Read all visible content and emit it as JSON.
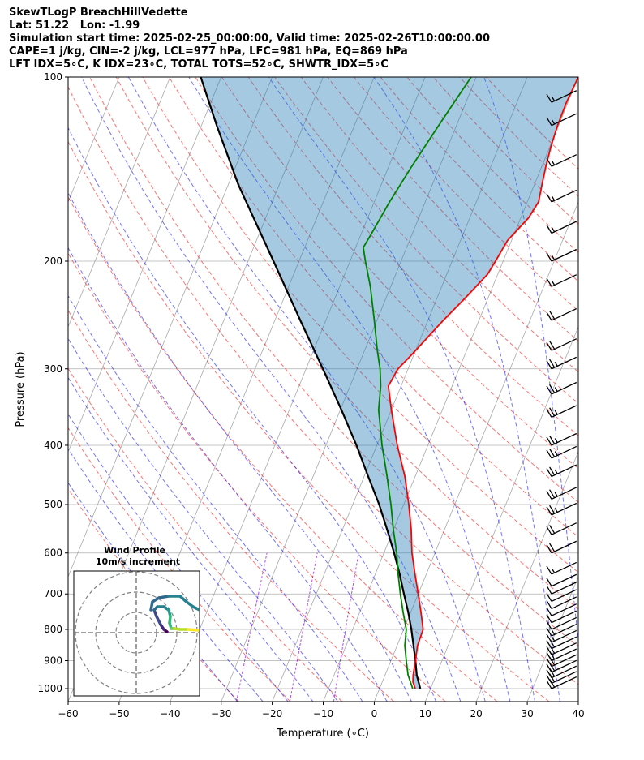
{
  "header": {
    "lines": [
      "SkewTLogP BreachHillVedette",
      "Lat: 51.22   Lon: -1.99",
      "Simulation start time: 2025-02-25_00:00:00, Valid time: 2025-02-26T10:00:00.00",
      "CAPE=1 j/kg, CIN=-2 j/kg, LCL=977 hPa, LFC=981 hPa, EQ=869 hPa",
      "LFT IDX=5∘C, K IDX=23∘C, TOTAL TOTS=52∘C, SHWTR_IDX=5∘C"
    ]
  },
  "chart_data": {
    "type": "line",
    "subtype": "skew-t log-p",
    "xlabel": "Temperature (∘C)",
    "ylabel": "Pressure (hPa)",
    "x_ticks": [
      -60,
      -50,
      -40,
      -30,
      -20,
      -10,
      0,
      10,
      20,
      30,
      40
    ],
    "y_ticks": [
      100,
      200,
      300,
      400,
      500,
      600,
      700,
      800,
      900,
      1000
    ],
    "xlim": [
      -60,
      40
    ],
    "ylim": [
      1050,
      100
    ],
    "grid": true,
    "colors": {
      "temperature": "#ff0000",
      "dewpoint": "#008000",
      "parcel": "#000000",
      "cape_fill": "#1f77b4",
      "dry_adiabats": "#ff0000",
      "moist_adiabats": "#0000ff",
      "isotherms": "#808080",
      "mixing_ratio": "#9400d3"
    },
    "temperature": [
      {
        "p": 1000,
        "t": 7.0
      },
      {
        "p": 975,
        "t": 6.0
      },
      {
        "p": 950,
        "t": 5.5
      },
      {
        "p": 900,
        "t": 4.8
      },
      {
        "p": 850,
        "t": 4.0
      },
      {
        "p": 800,
        "t": 3.8
      },
      {
        "p": 750,
        "t": 2.0
      },
      {
        "p": 700,
        "t": 0.0
      },
      {
        "p": 650,
        "t": -2.2
      },
      {
        "p": 600,
        "t": -4.5
      },
      {
        "p": 550,
        "t": -6.5
      },
      {
        "p": 500,
        "t": -9.0
      },
      {
        "p": 450,
        "t": -12.0
      },
      {
        "p": 400,
        "t": -16.0
      },
      {
        "p": 350,
        "t": -20.0
      },
      {
        "p": 320,
        "t": -22.5
      },
      {
        "p": 300,
        "t": -22.0
      },
      {
        "p": 285,
        "t": -20.5
      },
      {
        "p": 250,
        "t": -17.0
      },
      {
        "p": 230,
        "t": -14.5
      },
      {
        "p": 210,
        "t": -12.0
      },
      {
        "p": 200,
        "t": -11.5
      },
      {
        "p": 185,
        "t": -10.8
      },
      {
        "p": 170,
        "t": -8.5
      },
      {
        "p": 160,
        "t": -7.8
      },
      {
        "p": 150,
        "t": -8.5
      },
      {
        "p": 140,
        "t": -9.2
      },
      {
        "p": 130,
        "t": -9.8
      },
      {
        "p": 120,
        "t": -10.2
      },
      {
        "p": 110,
        "t": -10.3
      },
      {
        "p": 100,
        "t": -10.0
      }
    ],
    "dewpoint": [
      {
        "p": 1000,
        "t": 6.5
      },
      {
        "p": 950,
        "t": 4.5
      },
      {
        "p": 900,
        "t": 3.0
      },
      {
        "p": 850,
        "t": 1.5
      },
      {
        "p": 800,
        "t": 0.5
      },
      {
        "p": 750,
        "t": -1.5
      },
      {
        "p": 700,
        "t": -3.5
      },
      {
        "p": 650,
        "t": -5.5
      },
      {
        "p": 600,
        "t": -7.5
      },
      {
        "p": 550,
        "t": -10.0
      },
      {
        "p": 500,
        "t": -12.5
      },
      {
        "p": 450,
        "t": -15.5
      },
      {
        "p": 400,
        "t": -19.0
      },
      {
        "p": 350,
        "t": -22.5
      },
      {
        "p": 320,
        "t": -24.0
      },
      {
        "p": 300,
        "t": -25.5
      },
      {
        "p": 280,
        "t": -27.5
      },
      {
        "p": 250,
        "t": -30.5
      },
      {
        "p": 220,
        "t": -34.0
      },
      {
        "p": 200,
        "t": -37.0
      },
      {
        "p": 190,
        "t": -38.5
      },
      {
        "p": 180,
        "t": -38.0
      },
      {
        "p": 160,
        "t": -37.0
      },
      {
        "p": 140,
        "t": -35.5
      },
      {
        "p": 120,
        "t": -33.5
      },
      {
        "p": 100,
        "t": -31.0
      }
    ],
    "parcel": [
      {
        "p": 1000,
        "t": 8.0
      },
      {
        "p": 950,
        "t": 6.2
      },
      {
        "p": 900,
        "t": 4.8
      },
      {
        "p": 850,
        "t": 3.2
      },
      {
        "p": 800,
        "t": 1.5
      },
      {
        "p": 750,
        "t": -0.5
      },
      {
        "p": 700,
        "t": -2.8
      },
      {
        "p": 650,
        "t": -5.2
      },
      {
        "p": 600,
        "t": -8.0
      },
      {
        "p": 550,
        "t": -11.2
      },
      {
        "p": 500,
        "t": -14.8
      },
      {
        "p": 450,
        "t": -19.2
      },
      {
        "p": 400,
        "t": -24.0
      },
      {
        "p": 350,
        "t": -29.8
      },
      {
        "p": 300,
        "t": -36.7
      },
      {
        "p": 250,
        "t": -45.0
      },
      {
        "p": 200,
        "t": -55.0
      },
      {
        "p": 150,
        "t": -68.0
      },
      {
        "p": 120,
        "t": -77.0
      },
      {
        "p": 100,
        "t": -84.0
      }
    ],
    "cape_fill": {
      "bottom_p": 1000,
      "top_p": 100,
      "between": [
        "temperature",
        "parcel"
      ]
    },
    "wind_barbs": {
      "pressures": [
        1000,
        980,
        960,
        940,
        920,
        900,
        880,
        860,
        840,
        820,
        800,
        780,
        760,
        740,
        720,
        700,
        680,
        650,
        600,
        560,
        520,
        490,
        450,
        420,
        400,
        360,
        330,
        300,
        280,
        250,
        220,
        200,
        180,
        160,
        140,
        120,
        110
      ],
      "feathers": [
        2,
        2,
        2,
        2,
        2,
        2,
        1.5,
        1.5,
        1.5,
        1.5,
        1,
        1,
        1,
        1,
        1,
        1,
        1,
        1.5,
        2,
        2,
        2.5,
        2.5,
        2.5,
        2.5,
        2.5,
        2.5,
        2.5,
        2.5,
        2,
        2,
        1.5,
        1.5,
        1.5,
        1.5,
        1.5,
        1.5,
        1.5
      ],
      "direction_deg": 250
    },
    "inset": {
      "title": "Wind Profile",
      "subtitle": "10m/s increment",
      "rings": 3,
      "colormap": "viridis"
    }
  }
}
